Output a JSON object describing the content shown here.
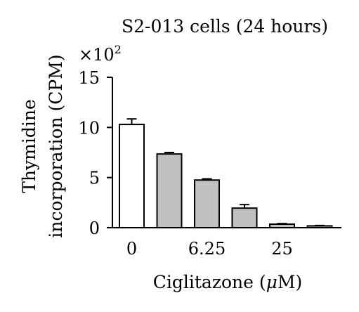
{
  "chart_data": {
    "type": "bar",
    "title": "S2-013 cells (24 hours)",
    "multiplier": "×10",
    "multiplier_exp": "2",
    "ylabel_line1": "Thymidine",
    "ylabel_line2": "incorporation (CPM)",
    "xlabel_prefix": "Ciglitazone (",
    "xlabel_mu": "μ",
    "xlabel_suffix": "M)",
    "ylim": [
      0,
      15
    ],
    "yticks": [
      "0",
      "5",
      "10",
      "15"
    ],
    "categories": [
      "0",
      "",
      "6.25",
      "",
      "25",
      ""
    ],
    "values": [
      10.3,
      7.35,
      4.75,
      1.95,
      0.35,
      0.18
    ],
    "errors": [
      0.55,
      0.15,
      0.12,
      0.35,
      0.06,
      0.04
    ],
    "colors": [
      "#ffffff",
      "#c0c0c0",
      "#c0c0c0",
      "#c0c0c0",
      "#c0c0c0",
      "#c0c0c0"
    ],
    "grid": false
  }
}
